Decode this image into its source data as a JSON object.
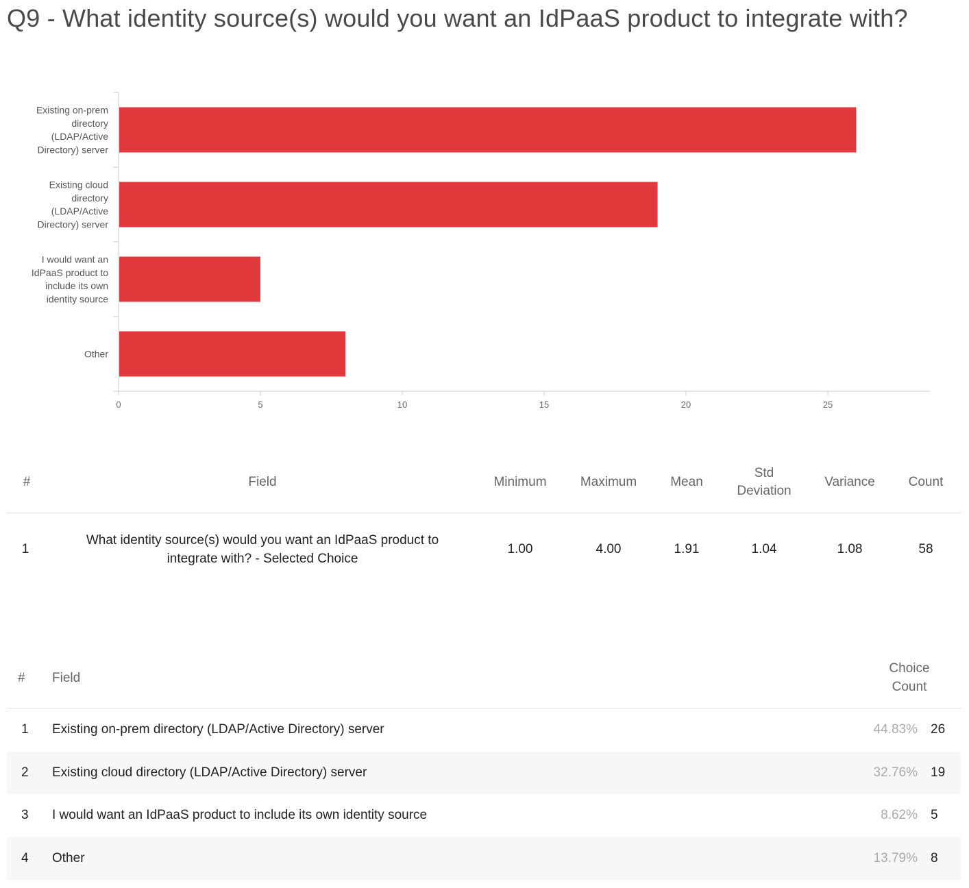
{
  "page": {
    "title": "Q9 - What identity source(s) would you want an IdPaaS product to integrate with?"
  },
  "chart_data": {
    "type": "bar",
    "orientation": "horizontal",
    "categories": [
      [
        "Existing on-prem",
        "directory",
        "(LDAP/Active",
        "Directory) server"
      ],
      [
        "Existing cloud",
        "directory",
        "(LDAP/Active",
        "Directory) server"
      ],
      [
        "I would want an",
        "IdPaaS product to",
        "include its own",
        "identity source"
      ],
      [
        "Other"
      ]
    ],
    "values": [
      26,
      19,
      5,
      8
    ],
    "x_ticks": [
      "0",
      "5",
      "10",
      "15",
      "20",
      "25"
    ],
    "xlim": [
      0,
      28.6
    ],
    "grid": false,
    "color": "#e23a3c"
  },
  "stats_table": {
    "headers": {
      "num": "#",
      "field": "Field",
      "minimum": "Minimum",
      "maximum": "Maximum",
      "mean": "Mean",
      "std_deviation": "Std Deviation",
      "variance": "Variance",
      "count": "Count"
    },
    "rows": [
      {
        "num": "1",
        "field": "What identity source(s) would you want an IdPaaS product to integrate with? - Selected Choice",
        "minimum": "1.00",
        "maximum": "4.00",
        "mean": "1.91",
        "std_deviation": "1.04",
        "variance": "1.08",
        "count": "58"
      }
    ]
  },
  "choice_table": {
    "headers": {
      "num": "#",
      "field": "Field",
      "choice_count": "Choice Count"
    },
    "rows": [
      {
        "num": "1",
        "field": "Existing on-prem directory (LDAP/Active Directory) server",
        "percent": "44.83%",
        "count": "26"
      },
      {
        "num": "2",
        "field": "Existing cloud directory (LDAP/Active Directory) server",
        "percent": "32.76%",
        "count": "19"
      },
      {
        "num": "3",
        "field": "I would want an IdPaaS product to include its own identity source",
        "percent": "8.62%",
        "count": "5"
      },
      {
        "num": "4",
        "field": "Other",
        "percent": "13.79%",
        "count": "8"
      }
    ]
  }
}
